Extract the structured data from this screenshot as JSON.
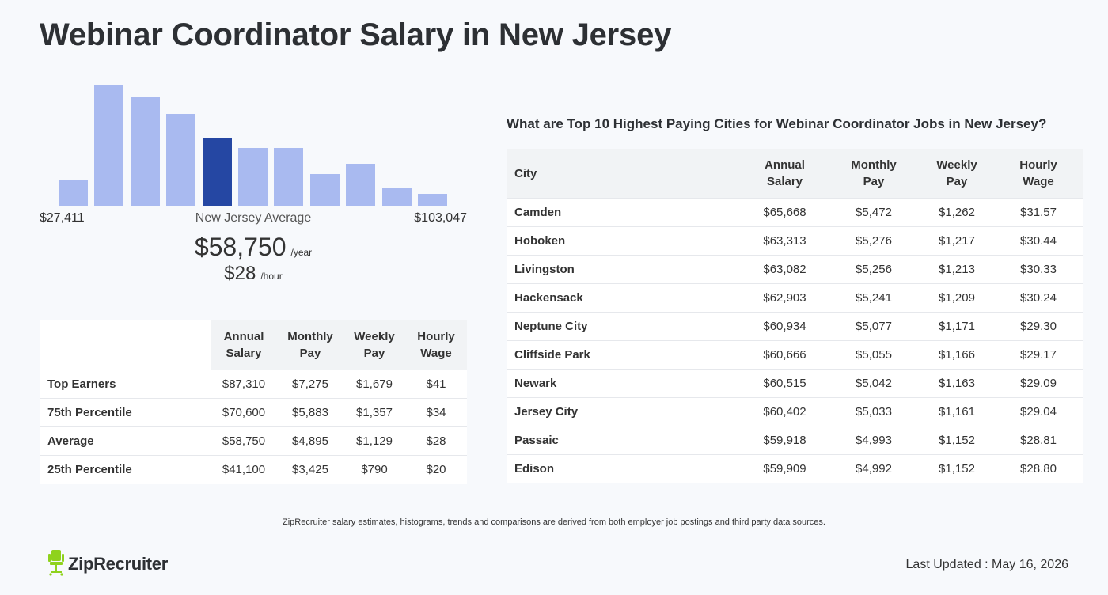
{
  "page": {
    "title": "Webinar Coordinator Salary in New Jersey"
  },
  "histogram": {
    "min_label": "$27,411",
    "max_label": "$103,047",
    "center_label": "New Jersey Average",
    "active_index": 4,
    "relative_heights": [
      0.21,
      1.0,
      0.9,
      0.76,
      0.56,
      0.48,
      0.48,
      0.26,
      0.35,
      0.15,
      0.1
    ],
    "bar_color": "#a9baf0",
    "active_color": "#2547a3"
  },
  "average": {
    "annual": "$58,750",
    "annual_unit": "/year",
    "hourly": "$28",
    "hourly_unit": "/hour"
  },
  "percentile_table": {
    "headers": [
      "Annual Salary",
      "Monthly Pay",
      "Weekly Pay",
      "Hourly Wage"
    ],
    "rows": [
      {
        "label": "Top Earners",
        "values": [
          "$87,310",
          "$7,275",
          "$1,679",
          "$41"
        ]
      },
      {
        "label": "75th Percentile",
        "values": [
          "$70,600",
          "$5,883",
          "$1,357",
          "$34"
        ]
      },
      {
        "label": "Average",
        "values": [
          "$58,750",
          "$4,895",
          "$1,129",
          "$28"
        ]
      },
      {
        "label": "25th Percentile",
        "values": [
          "$41,100",
          "$3,425",
          "$790",
          "$20"
        ]
      }
    ]
  },
  "cities": {
    "heading": "What are Top 10 Highest Paying Cities for Webinar Coordinator Jobs in New Jersey?",
    "city_header": "City",
    "headers": [
      "Annual Salary",
      "Monthly Pay",
      "Weekly Pay",
      "Hourly Wage"
    ],
    "rows": [
      {
        "city": "Camden",
        "values": [
          "$65,668",
          "$5,472",
          "$1,262",
          "$31.57"
        ]
      },
      {
        "city": "Hoboken",
        "values": [
          "$63,313",
          "$5,276",
          "$1,217",
          "$30.44"
        ]
      },
      {
        "city": "Livingston",
        "values": [
          "$63,082",
          "$5,256",
          "$1,213",
          "$30.33"
        ]
      },
      {
        "city": "Hackensack",
        "values": [
          "$62,903",
          "$5,241",
          "$1,209",
          "$30.24"
        ]
      },
      {
        "city": "Neptune City",
        "values": [
          "$60,934",
          "$5,077",
          "$1,171",
          "$29.30"
        ]
      },
      {
        "city": "Cliffside Park",
        "values": [
          "$60,666",
          "$5,055",
          "$1,166",
          "$29.17"
        ]
      },
      {
        "city": "Newark",
        "values": [
          "$60,515",
          "$5,042",
          "$1,163",
          "$29.09"
        ]
      },
      {
        "city": "Jersey City",
        "values": [
          "$60,402",
          "$5,033",
          "$1,161",
          "$29.04"
        ]
      },
      {
        "city": "Passaic",
        "values": [
          "$59,918",
          "$4,993",
          "$1,152",
          "$28.81"
        ]
      },
      {
        "city": "Edison",
        "values": [
          "$59,909",
          "$4,992",
          "$1,152",
          "$28.80"
        ]
      }
    ]
  },
  "footer": {
    "note": "ZipRecruiter salary estimates, histograms, trends and comparisons are derived from both employer job postings and third party data sources.",
    "brand": "ZipRecruiter",
    "brand_icon": "chair-icon",
    "brand_color": "#8fd21d",
    "last_updated": "Last Updated : May 16, 2026"
  }
}
